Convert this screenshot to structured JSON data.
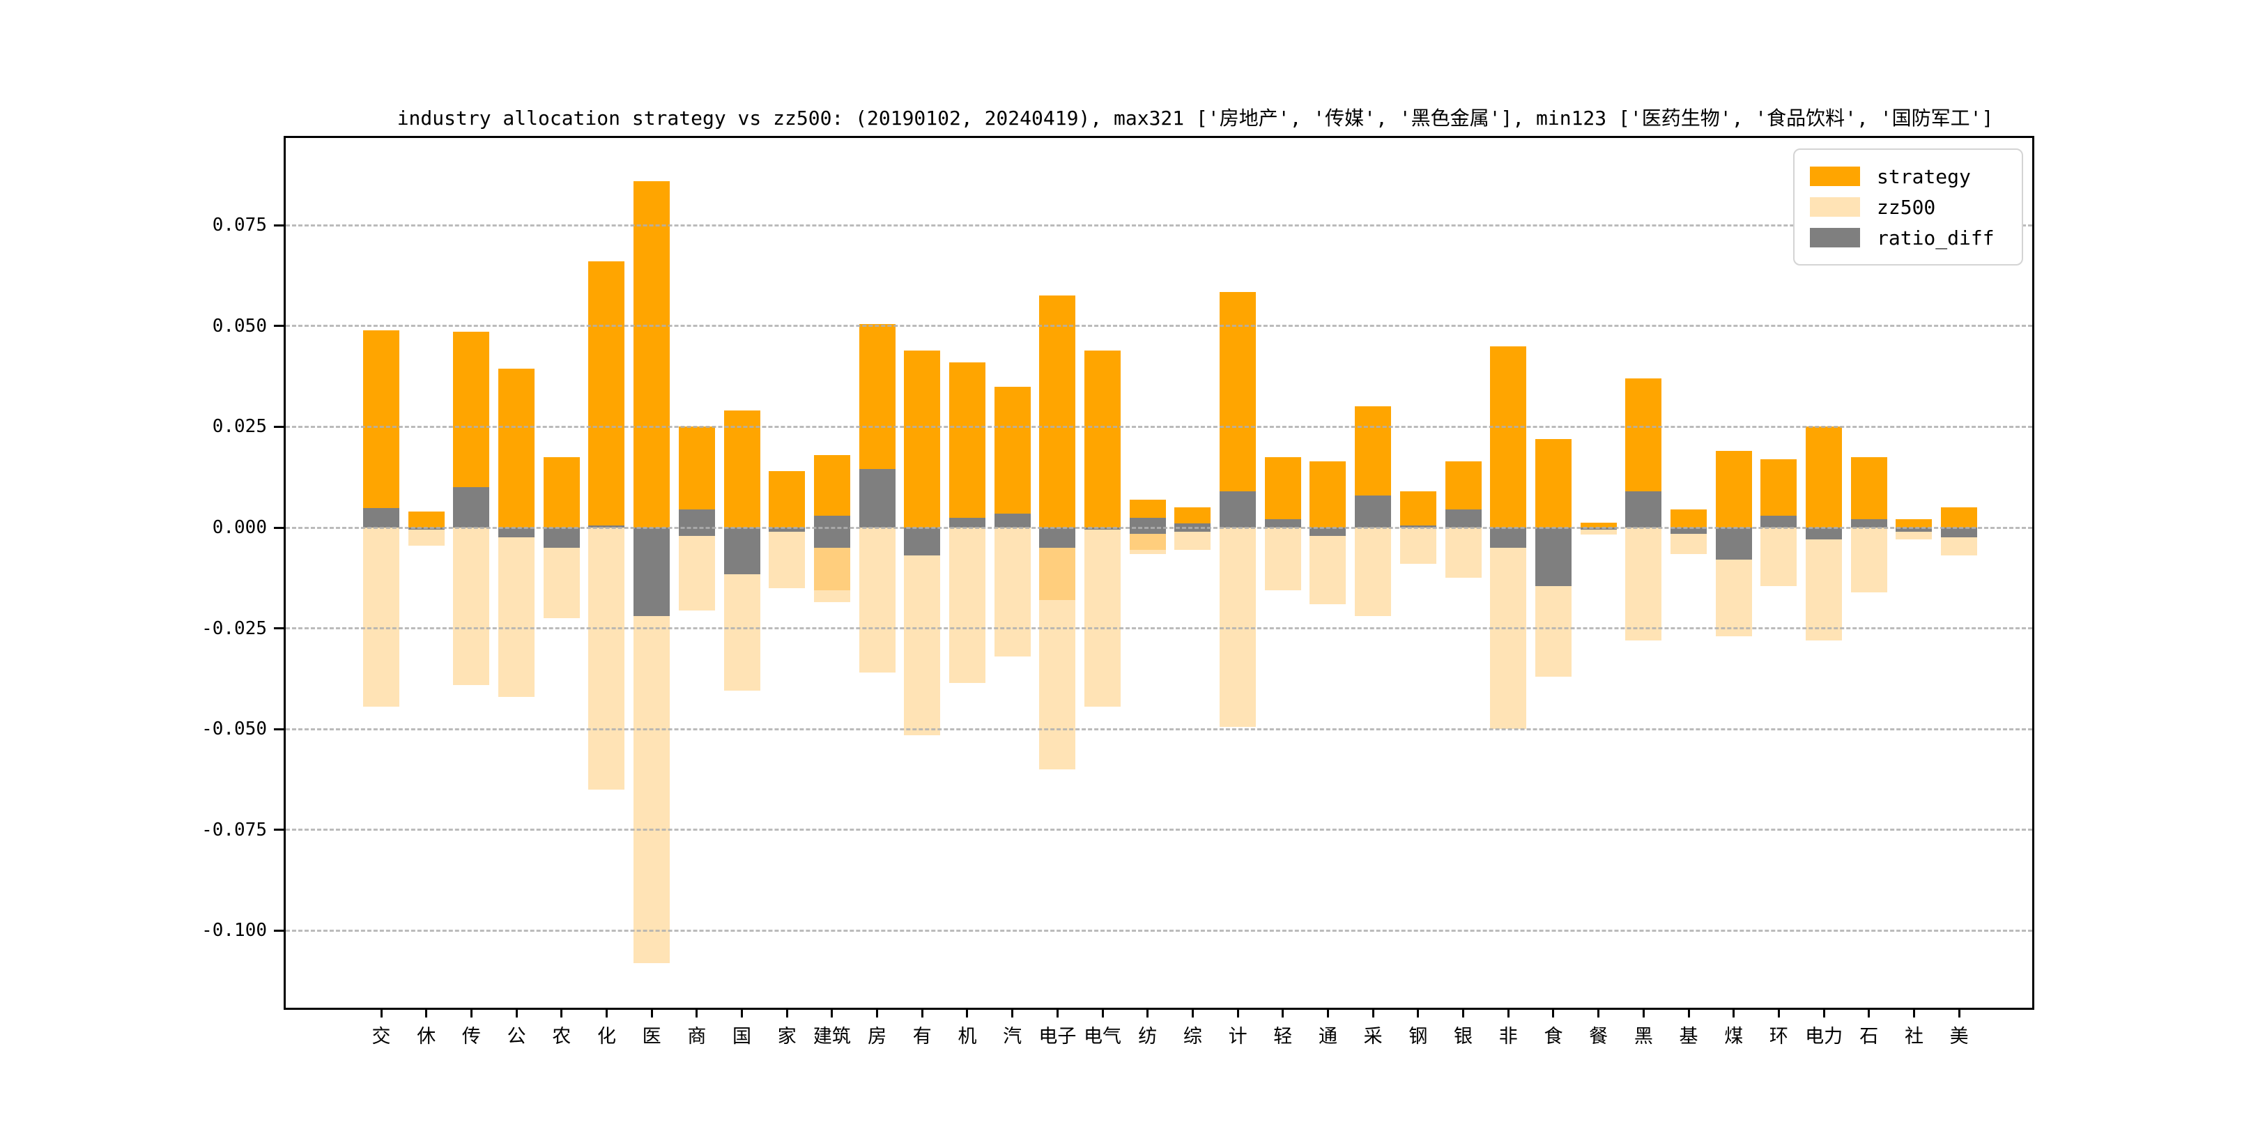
{
  "title": "industry allocation strategy vs zz500: (20190102, 20240419), max321 ['房地产', '传媒', '黑色金属'], min123 ['医药生物', '食品饮料', '国防军工']",
  "legend": {
    "items": [
      {
        "label": "strategy",
        "color": "#FFA500"
      },
      {
        "label": "zz500",
        "color": "#FFE3B5"
      },
      {
        "label": "ratio_diff",
        "color": "#7F7F7F"
      }
    ]
  },
  "colors": {
    "strategy": "#FFA500",
    "zz500": "#FFE3B5",
    "ratio_diff": "#7F7F7F",
    "overlap_band": "#FFCE7D",
    "grid": "#AFAFAF",
    "spine": "#000000"
  },
  "chart_data": {
    "type": "bar",
    "title": "industry allocation strategy vs zz500: (20190102, 20240419), max321 ['房地产', '传媒', '黑色金属'], min123 ['医药生物', '食品饮料', '国防军工']",
    "categories": [
      "交",
      "休",
      "传",
      "公",
      "农",
      "化",
      "医",
      "商",
      "国",
      "家",
      "建筑",
      "房",
      "有",
      "机",
      "汽",
      "电子",
      "电气",
      "纺",
      "综",
      "计",
      "轻",
      "通",
      "采",
      "钢",
      "银",
      "非",
      "食",
      "餐",
      "黑",
      "基",
      "煤",
      "环",
      "电力",
      "石",
      "社",
      "美"
    ],
    "series": [
      {
        "name": "strategy",
        "color": "#FFA500",
        "values": [
          0.049,
          0.004,
          0.0485,
          0.0395,
          0.0175,
          0.066,
          0.086,
          0.025,
          0.029,
          0.014,
          0.018,
          0.0505,
          0.044,
          0.041,
          0.035,
          0.0575,
          0.044,
          0.007,
          0.005,
          0.0585,
          0.0175,
          0.0165,
          0.03,
          0.009,
          0.0165,
          0.045,
          0.022,
          0.0012,
          0.037,
          0.0045,
          0.019,
          0.017,
          0.025,
          0.0175,
          0.002,
          0.005
        ]
      },
      {
        "name": "zz500",
        "color": "#FFE3B5",
        "values": [
          -0.0445,
          -0.0045,
          -0.039,
          -0.042,
          -0.0225,
          -0.065,
          -0.108,
          -0.0205,
          -0.0405,
          -0.015,
          -0.0185,
          -0.036,
          -0.0515,
          -0.0385,
          -0.032,
          -0.06,
          -0.0445,
          -0.0065,
          -0.0055,
          -0.0495,
          -0.0155,
          -0.019,
          -0.022,
          -0.009,
          -0.0125,
          -0.05,
          -0.037,
          -0.0018,
          -0.028,
          -0.0065,
          -0.027,
          -0.0145,
          -0.028,
          -0.016,
          -0.003,
          -0.007
        ]
      },
      {
        "name": "ratio_diff",
        "color": "#7F7F7F",
        "values": [
          0.0048,
          -0.0005,
          0.01,
          -0.0025,
          -0.005,
          0.0005,
          -0.022,
          0.0045,
          -0.0115,
          -0.001,
          -0.0005,
          0.0145,
          -0.007,
          0.0025,
          0.0035,
          -0.005,
          -0.0005,
          0.0005,
          -0.0005,
          0.009,
          0.002,
          -0.002,
          0.008,
          0.0005,
          0.0045,
          -0.005,
          -0.0145,
          -0.0005,
          0.009,
          -0.0015,
          -0.008,
          0.003,
          -0.003,
          0.002,
          -0.001,
          -0.0025
        ]
      }
    ],
    "overlap_bands": [
      {
        "index": 10,
        "from": -0.005,
        "to": -0.0155
      },
      {
        "index": 15,
        "from": -0.005,
        "to": -0.018
      },
      {
        "index": 17,
        "from": -0.0015,
        "to": -0.0055
      }
    ],
    "gray_band_overrides": {
      "7": [
        0.0045,
        -0.002
      ],
      "10": [
        0.003,
        -0.005
      ],
      "17": [
        0.0025,
        -0.0015
      ],
      "18": [
        0.001,
        -0.001
      ]
    },
    "yticks": [
      0.075,
      0.05,
      0.025,
      0.0,
      -0.025,
      -0.05,
      -0.075,
      -0.1
    ],
    "ytick_labels": [
      "0.075",
      "0.050",
      "0.025",
      "0.000",
      "-0.025",
      "-0.050",
      "-0.075",
      "-0.100"
    ],
    "ylim": [
      -0.119,
      0.0966
    ],
    "grid": "horizontal-dashed",
    "legend_position": "upper-right",
    "xlabel": "",
    "ylabel": ""
  }
}
